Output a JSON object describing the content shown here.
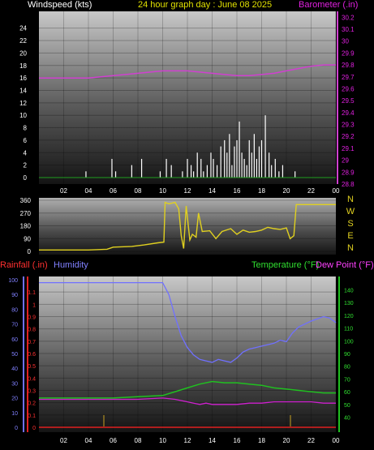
{
  "header": {
    "windspeed_label": "Windspeed (kts)",
    "title": "24 hour graph day : June 08 2025",
    "barometer_label": "Barometer (.in)"
  },
  "lower_header": {
    "rainfall_label": "Rainfall (.in)",
    "humidity_label": "Humidity",
    "temperature_label": "Temperature (°F)",
    "dewpoint_label": "Dew Point (°F)"
  },
  "colors": {
    "windspeed": "#ffffff",
    "gust": "#dddddd",
    "barometer": "#d040d0",
    "direction": "#e0d020",
    "humidity": "#7070ff",
    "temperature": "#20c020",
    "dewpoint": "#d020d0",
    "rainfall": "#e02020",
    "title": "#e0e000",
    "label_barometer": "#e020e0",
    "label_rain": "#ff3030",
    "label_humidity": "#8080ff",
    "label_temperature": "#30e030",
    "label_dewpoint": "#ff40ff"
  },
  "x_tick_labels": [
    "02",
    "04",
    "06",
    "08",
    "10",
    "12",
    "14",
    "16",
    "18",
    "20",
    "22",
    "00"
  ],
  "chart_data": [
    {
      "type": "bar",
      "title": "24 hour graph day : June 08 2025",
      "ylabel": "Windspeed (kts)",
      "y2label": "Barometer (.in)",
      "ylim": [
        0,
        25
      ],
      "y2lim": [
        28.8,
        30.25
      ],
      "y_ticks": [
        "0",
        "2",
        "4",
        "6",
        "8",
        "10",
        "12",
        "14",
        "16",
        "18",
        "20",
        "22",
        "24"
      ],
      "y2_ticks": [
        "28.8",
        "28.9",
        "29",
        "29.1",
        "29.2",
        "29.3",
        "29.4",
        "29.5",
        "29.6",
        "29.7",
        "29.8",
        "29.9",
        "30",
        "30.1",
        "30.2"
      ],
      "wind_bars": [
        {
          "hour": 3.8,
          "kts": 1
        },
        {
          "hour": 5.9,
          "kts": 3
        },
        {
          "hour": 6.2,
          "kts": 1
        },
        {
          "hour": 7.5,
          "kts": 2
        },
        {
          "hour": 8.3,
          "kts": 3
        },
        {
          "hour": 9.8,
          "kts": 1
        },
        {
          "hour": 10.3,
          "kts": 3
        },
        {
          "hour": 10.7,
          "kts": 2
        },
        {
          "hour": 11.6,
          "kts": 1
        },
        {
          "hour": 12.0,
          "kts": 3
        },
        {
          "hour": 12.3,
          "kts": 2
        },
        {
          "hour": 12.5,
          "kts": 1
        },
        {
          "hour": 12.8,
          "kts": 4
        },
        {
          "hour": 13.1,
          "kts": 3
        },
        {
          "hour": 13.3,
          "kts": 1
        },
        {
          "hour": 13.6,
          "kts": 2
        },
        {
          "hour": 13.9,
          "kts": 4
        },
        {
          "hour": 14.1,
          "kts": 3
        },
        {
          "hour": 14.4,
          "kts": 2
        },
        {
          "hour": 14.7,
          "kts": 5
        },
        {
          "hour": 15.0,
          "kts": 6
        },
        {
          "hour": 15.2,
          "kts": 4
        },
        {
          "hour": 15.4,
          "kts": 7
        },
        {
          "hour": 15.6,
          "kts": 2
        },
        {
          "hour": 15.8,
          "kts": 5
        },
        {
          "hour": 16.0,
          "kts": 6
        },
        {
          "hour": 16.2,
          "kts": 9
        },
        {
          "hour": 16.4,
          "kts": 4
        },
        {
          "hour": 16.6,
          "kts": 3
        },
        {
          "hour": 16.8,
          "kts": 2
        },
        {
          "hour": 17.0,
          "kts": 6
        },
        {
          "hour": 17.2,
          "kts": 4
        },
        {
          "hour": 17.4,
          "kts": 7
        },
        {
          "hour": 17.6,
          "kts": 3
        },
        {
          "hour": 17.8,
          "kts": 5
        },
        {
          "hour": 18.0,
          "kts": 6
        },
        {
          "hour": 18.3,
          "kts": 10
        },
        {
          "hour": 18.6,
          "kts": 4
        },
        {
          "hour": 18.8,
          "kts": 2
        },
        {
          "hour": 19.1,
          "kts": 3
        },
        {
          "hour": 19.4,
          "kts": 1
        },
        {
          "hour": 19.7,
          "kts": 2
        },
        {
          "hour": 20.7,
          "kts": 1
        }
      ],
      "barometer": [
        {
          "hour": 0,
          "in": 29.69
        },
        {
          "hour": 1,
          "in": 29.69
        },
        {
          "hour": 2,
          "in": 29.69
        },
        {
          "hour": 3,
          "in": 29.69
        },
        {
          "hour": 4,
          "in": 29.69
        },
        {
          "hour": 5,
          "in": 29.7
        },
        {
          "hour": 6,
          "in": 29.71
        },
        {
          "hour": 7,
          "in": 29.72
        },
        {
          "hour": 8,
          "in": 29.73
        },
        {
          "hour": 9,
          "in": 29.74
        },
        {
          "hour": 10,
          "in": 29.75
        },
        {
          "hour": 11,
          "in": 29.75
        },
        {
          "hour": 12,
          "in": 29.75
        },
        {
          "hour": 13,
          "in": 29.74
        },
        {
          "hour": 14,
          "in": 29.73
        },
        {
          "hour": 15,
          "in": 29.72
        },
        {
          "hour": 16,
          "in": 29.71
        },
        {
          "hour": 17,
          "in": 29.71
        },
        {
          "hour": 18,
          "in": 29.72
        },
        {
          "hour": 19,
          "in": 29.73
        },
        {
          "hour": 20,
          "in": 29.75
        },
        {
          "hour": 21,
          "in": 29.77
        },
        {
          "hour": 22,
          "in": 29.79
        },
        {
          "hour": 23,
          "in": 29.8
        },
        {
          "hour": 24,
          "in": 29.8
        }
      ]
    },
    {
      "type": "line",
      "ylabel": "Wind direction",
      "ylim": [
        0,
        360
      ],
      "y_ticks": [
        "0",
        "90",
        "180",
        "270",
        "360"
      ],
      "compass_labels": [
        "N",
        "W",
        "S",
        "E",
        "N"
      ],
      "direction": [
        {
          "hour": 0,
          "deg": 10
        },
        {
          "hour": 2,
          "deg": 10
        },
        {
          "hour": 4,
          "deg": 10
        },
        {
          "hour": 5.5,
          "deg": 15
        },
        {
          "hour": 6,
          "deg": 30
        },
        {
          "hour": 7.5,
          "deg": 35
        },
        {
          "hour": 8.5,
          "deg": 45
        },
        {
          "hour": 9.6,
          "deg": 60
        },
        {
          "hour": 10.1,
          "deg": 65
        },
        {
          "hour": 10.2,
          "deg": 345
        },
        {
          "hour": 10.5,
          "deg": 335
        },
        {
          "hour": 11,
          "deg": 345
        },
        {
          "hour": 11.3,
          "deg": 300
        },
        {
          "hour": 11.5,
          "deg": 110
        },
        {
          "hour": 11.7,
          "deg": 20
        },
        {
          "hour": 11.9,
          "deg": 320
        },
        {
          "hour": 12.2,
          "deg": 80
        },
        {
          "hour": 12.4,
          "deg": 120
        },
        {
          "hour": 12.7,
          "deg": 100
        },
        {
          "hour": 12.9,
          "deg": 270
        },
        {
          "hour": 13.2,
          "deg": 140
        },
        {
          "hour": 13.8,
          "deg": 145
        },
        {
          "hour": 14.3,
          "deg": 90
        },
        {
          "hour": 14.8,
          "deg": 140
        },
        {
          "hour": 15.5,
          "deg": 160
        },
        {
          "hour": 16,
          "deg": 120
        },
        {
          "hour": 16.5,
          "deg": 150
        },
        {
          "hour": 17,
          "deg": 135
        },
        {
          "hour": 17.5,
          "deg": 140
        },
        {
          "hour": 18,
          "deg": 150
        },
        {
          "hour": 18.5,
          "deg": 170
        },
        {
          "hour": 19,
          "deg": 160
        },
        {
          "hour": 19.5,
          "deg": 155
        },
        {
          "hour": 20,
          "deg": 165
        },
        {
          "hour": 20.3,
          "deg": 90
        },
        {
          "hour": 20.6,
          "deg": 110
        },
        {
          "hour": 20.8,
          "deg": 330
        },
        {
          "hour": 22,
          "deg": 330
        },
        {
          "hour": 24,
          "deg": 330
        }
      ]
    },
    {
      "type": "line",
      "ylabel": "Rainfall (.in)",
      "y2label": "Temperature (°F)",
      "ylim": [
        0,
        1.2
      ],
      "humidity_ylim": [
        0,
        100
      ],
      "y2lim": [
        32,
        148
      ],
      "rain_ticks": [
        "0",
        "0.1",
        "0.2",
        "0.3",
        "0.4",
        "0.5",
        "0.6",
        "0.7",
        "0.8",
        "0.9",
        "1",
        "1.1"
      ],
      "humidity_ticks": [
        "0",
        "10",
        "20",
        "30",
        "40",
        "50",
        "60",
        "70",
        "80",
        "90",
        "100"
      ],
      "temp_ticks": [
        "40",
        "50",
        "60",
        "70",
        "80",
        "90",
        "100",
        "110",
        "120",
        "130",
        "140"
      ],
      "series": [
        {
          "name": "Humidity",
          "unit": "%",
          "points": [
            {
              "hour": 0,
              "v": 98
            },
            {
              "hour": 2,
              "v": 98
            },
            {
              "hour": 4,
              "v": 98
            },
            {
              "hour": 6,
              "v": 98
            },
            {
              "hour": 8,
              "v": 98
            },
            {
              "hour": 9.5,
              "v": 98
            },
            {
              "hour": 10,
              "v": 98
            },
            {
              "hour": 10.5,
              "v": 90
            },
            {
              "hour": 11,
              "v": 75
            },
            {
              "hour": 11.5,
              "v": 62
            },
            {
              "hour": 12,
              "v": 54
            },
            {
              "hour": 12.5,
              "v": 49
            },
            {
              "hour": 13,
              "v": 46
            },
            {
              "hour": 13.5,
              "v": 45
            },
            {
              "hour": 14,
              "v": 44
            },
            {
              "hour": 14.5,
              "v": 46
            },
            {
              "hour": 15,
              "v": 45
            },
            {
              "hour": 15.5,
              "v": 44
            },
            {
              "hour": 16,
              "v": 47
            },
            {
              "hour": 16.5,
              "v": 51
            },
            {
              "hour": 17,
              "v": 53
            },
            {
              "hour": 17.5,
              "v": 54
            },
            {
              "hour": 18,
              "v": 55
            },
            {
              "hour": 18.5,
              "v": 56
            },
            {
              "hour": 19,
              "v": 57
            },
            {
              "hour": 19.5,
              "v": 59
            },
            {
              "hour": 20,
              "v": 58
            },
            {
              "hour": 20.5,
              "v": 64
            },
            {
              "hour": 21,
              "v": 68
            },
            {
              "hour": 22,
              "v": 72
            },
            {
              "hour": 23,
              "v": 75
            },
            {
              "hour": 23.5,
              "v": 74
            },
            {
              "hour": 24,
              "v": 71
            }
          ]
        },
        {
          "name": "Temperature (°F)",
          "unit": "°F",
          "points": [
            {
              "hour": 0,
              "v": 55
            },
            {
              "hour": 2,
              "v": 55
            },
            {
              "hour": 4,
              "v": 55
            },
            {
              "hour": 6,
              "v": 55
            },
            {
              "hour": 8,
              "v": 56
            },
            {
              "hour": 10,
              "v": 57
            },
            {
              "hour": 11,
              "v": 60
            },
            {
              "hour": 12,
              "v": 63
            },
            {
              "hour": 13,
              "v": 66
            },
            {
              "hour": 14,
              "v": 68
            },
            {
              "hour": 15,
              "v": 67
            },
            {
              "hour": 16,
              "v": 67
            },
            {
              "hour": 17,
              "v": 66
            },
            {
              "hour": 18,
              "v": 65
            },
            {
              "hour": 19,
              "v": 63
            },
            {
              "hour": 20,
              "v": 62
            },
            {
              "hour": 21,
              "v": 61
            },
            {
              "hour": 22,
              "v": 60
            },
            {
              "hour": 23,
              "v": 59
            },
            {
              "hour": 24,
              "v": 59
            }
          ]
        },
        {
          "name": "Dew Point (°F)",
          "unit": "°F",
          "points": [
            {
              "hour": 0,
              "v": 54
            },
            {
              "hour": 4,
              "v": 54
            },
            {
              "hour": 8,
              "v": 54
            },
            {
              "hour": 10,
              "v": 55
            },
            {
              "hour": 11,
              "v": 54
            },
            {
              "hour": 12,
              "v": 52
            },
            {
              "hour": 12.5,
              "v": 51
            },
            {
              "hour": 13,
              "v": 50
            },
            {
              "hour": 13.5,
              "v": 51
            },
            {
              "hour": 14,
              "v": 50
            },
            {
              "hour": 15,
              "v": 50
            },
            {
              "hour": 16,
              "v": 50
            },
            {
              "hour": 17,
              "v": 51
            },
            {
              "hour": 18,
              "v": 51
            },
            {
              "hour": 19,
              "v": 52
            },
            {
              "hour": 20,
              "v": 52
            },
            {
              "hour": 21,
              "v": 52
            },
            {
              "hour": 22,
              "v": 52
            },
            {
              "hour": 23,
              "v": 51
            },
            {
              "hour": 24,
              "v": 51
            }
          ]
        },
        {
          "name": "Rainfall (.in)",
          "unit": "in",
          "points": [
            {
              "hour": 0,
              "v": 0
            },
            {
              "hour": 24,
              "v": 0
            }
          ]
        }
      ]
    }
  ]
}
